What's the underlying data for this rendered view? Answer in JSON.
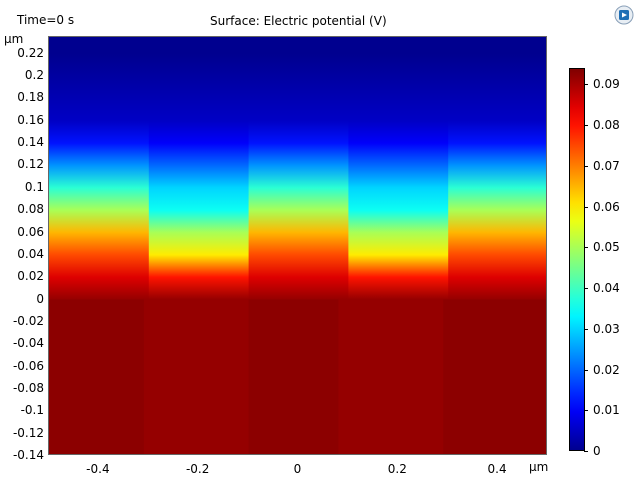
{
  "header": {
    "time_label": "Time=0 s",
    "plot_title": "Surface: Electric potential (V)"
  },
  "axes": {
    "y_unit": "μm",
    "x_unit": "μm",
    "y_ticks": [
      "0.22",
      "0.2",
      "0.18",
      "0.16",
      "0.14",
      "0.12",
      "0.1",
      "0.08",
      "0.06",
      "0.04",
      "0.02",
      "0",
      "-0.02",
      "-0.04",
      "-0.06",
      "-0.08",
      "-0.1",
      "-0.12",
      "-0.14"
    ],
    "x_ticks": [
      "-0.4",
      "-0.2",
      "0",
      "0.2",
      "0.4"
    ],
    "x_range": [
      -0.5,
      0.5
    ],
    "y_range": [
      -0.14,
      0.235
    ]
  },
  "colorbar": {
    "ticks": [
      "0.09",
      "0.08",
      "0.07",
      "0.06",
      "0.05",
      "0.04",
      "0.03",
      "0.02",
      "0.01",
      "0"
    ],
    "min": 0,
    "max": 0.094,
    "colormap": "jet",
    "colors": [
      "#00008f",
      "#0000ff",
      "#00ffff",
      "#ffff00",
      "#ff0000",
      "#800000"
    ]
  },
  "chart_data": {
    "type": "heatmap",
    "title": "Surface: Electric potential (V)",
    "xlabel": "μm",
    "ylabel": "μm",
    "xlim": [
      -0.5,
      0.5
    ],
    "ylim": [
      -0.14,
      0.235
    ],
    "zlim": [
      0,
      0.094
    ],
    "y": [
      0.22,
      0.16,
      0.14,
      0.12,
      0.1,
      0.08,
      0.06,
      0.04,
      0.02,
      0,
      -0.14
    ],
    "z_notch_region": [
      0.0,
      0.005,
      0.01,
      0.02,
      0.03,
      0.035,
      0.05,
      0.06,
      0.08,
      0.092,
      0.092
    ],
    "z_plateau_region": [
      0.0,
      0.005,
      0.012,
      0.024,
      0.038,
      0.05,
      0.065,
      0.075,
      0.085,
      0.092,
      0.092
    ]
  },
  "logo": {
    "icon": "comsol-logo-icon"
  }
}
